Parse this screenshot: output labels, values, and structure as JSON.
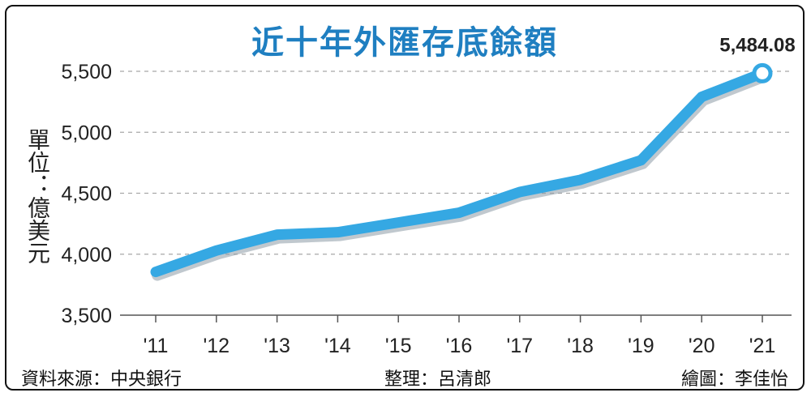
{
  "title": "近十年外匯存底餘額",
  "unit_label": "單位：億美元",
  "source": "資料來源：中央銀行",
  "editor": "整理：呂清郎",
  "graphic": "繪圖：李佳怡",
  "colors": {
    "line": "#35a8e3",
    "line_shadow": "#8c9aa6",
    "title": "#1f7fc1"
  },
  "chart_data": {
    "type": "line",
    "title": "近十年外匯存底餘額",
    "xlabel": "",
    "ylabel": "單位：億美元",
    "categories": [
      "'11",
      "'12",
      "'13",
      "'14",
      "'15",
      "'16",
      "'17",
      "'18",
      "'19",
      "'20",
      "'21"
    ],
    "series": [
      {
        "values": [
          3855,
          4030,
          4160,
          4180,
          4260,
          4340,
          4510,
          4610,
          4770,
          5290,
          5484.08
        ]
      }
    ],
    "yticks": [
      "3,500",
      "4,000",
      "4,500",
      "5,000",
      "5,500"
    ],
    "ytick_values": [
      3500,
      4000,
      4500,
      5000,
      5500
    ],
    "ylim": [
      3500,
      5500
    ],
    "grid": true,
    "annotations": [
      {
        "category": "'21",
        "text": "5,484.08"
      }
    ]
  }
}
